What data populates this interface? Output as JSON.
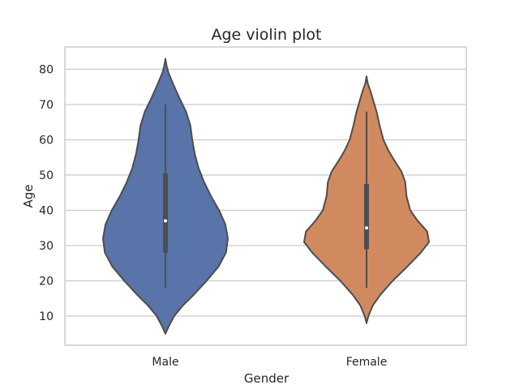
{
  "chart_data": {
    "type": "violin",
    "title": "Age violin plot",
    "xlabel": "Gender",
    "ylabel": "Age",
    "ylim": [
      2,
      87
    ],
    "yticks": [
      10,
      20,
      30,
      40,
      50,
      60,
      70,
      80
    ],
    "grid": true,
    "categories": [
      "Male",
      "Female"
    ],
    "colors": [
      "#5874a8",
      "#d18a5f"
    ],
    "violins": [
      {
        "category": "Male",
        "min": 18,
        "q1": 28,
        "median": 37,
        "q3": 50.5,
        "max": 70,
        "kde_min": 5,
        "kde_max": 83,
        "profile": [
          [
            5,
            0.0
          ],
          [
            7,
            0.05
          ],
          [
            10,
            0.14
          ],
          [
            13,
            0.28
          ],
          [
            16,
            0.45
          ],
          [
            20,
            0.66
          ],
          [
            24,
            0.85
          ],
          [
            28,
            0.97
          ],
          [
            32,
            1.0
          ],
          [
            36,
            0.96
          ],
          [
            40,
            0.86
          ],
          [
            44,
            0.73
          ],
          [
            48,
            0.62
          ],
          [
            52,
            0.53
          ],
          [
            56,
            0.47
          ],
          [
            60,
            0.43
          ],
          [
            64,
            0.4
          ],
          [
            68,
            0.33
          ],
          [
            72,
            0.22
          ],
          [
            76,
            0.12
          ],
          [
            79,
            0.05
          ],
          [
            81,
            0.02
          ],
          [
            83,
            0.0
          ]
        ]
      },
      {
        "category": "Female",
        "min": 18,
        "q1": 29,
        "median": 35,
        "q3": 47.5,
        "max": 68,
        "kde_min": 8,
        "kde_max": 78,
        "profile": [
          [
            8,
            0.0
          ],
          [
            10,
            0.03
          ],
          [
            13,
            0.1
          ],
          [
            16,
            0.22
          ],
          [
            20,
            0.42
          ],
          [
            24,
            0.65
          ],
          [
            28,
            0.87
          ],
          [
            31,
            1.0
          ],
          [
            34,
            0.97
          ],
          [
            37,
            0.82
          ],
          [
            40,
            0.7
          ],
          [
            44,
            0.64
          ],
          [
            48,
            0.62
          ],
          [
            51,
            0.56
          ],
          [
            54,
            0.45
          ],
          [
            57,
            0.35
          ],
          [
            60,
            0.27
          ],
          [
            64,
            0.21
          ],
          [
            68,
            0.16
          ],
          [
            71,
            0.11
          ],
          [
            74,
            0.06
          ],
          [
            76,
            0.02
          ],
          [
            78,
            0.0
          ]
        ]
      }
    ]
  }
}
